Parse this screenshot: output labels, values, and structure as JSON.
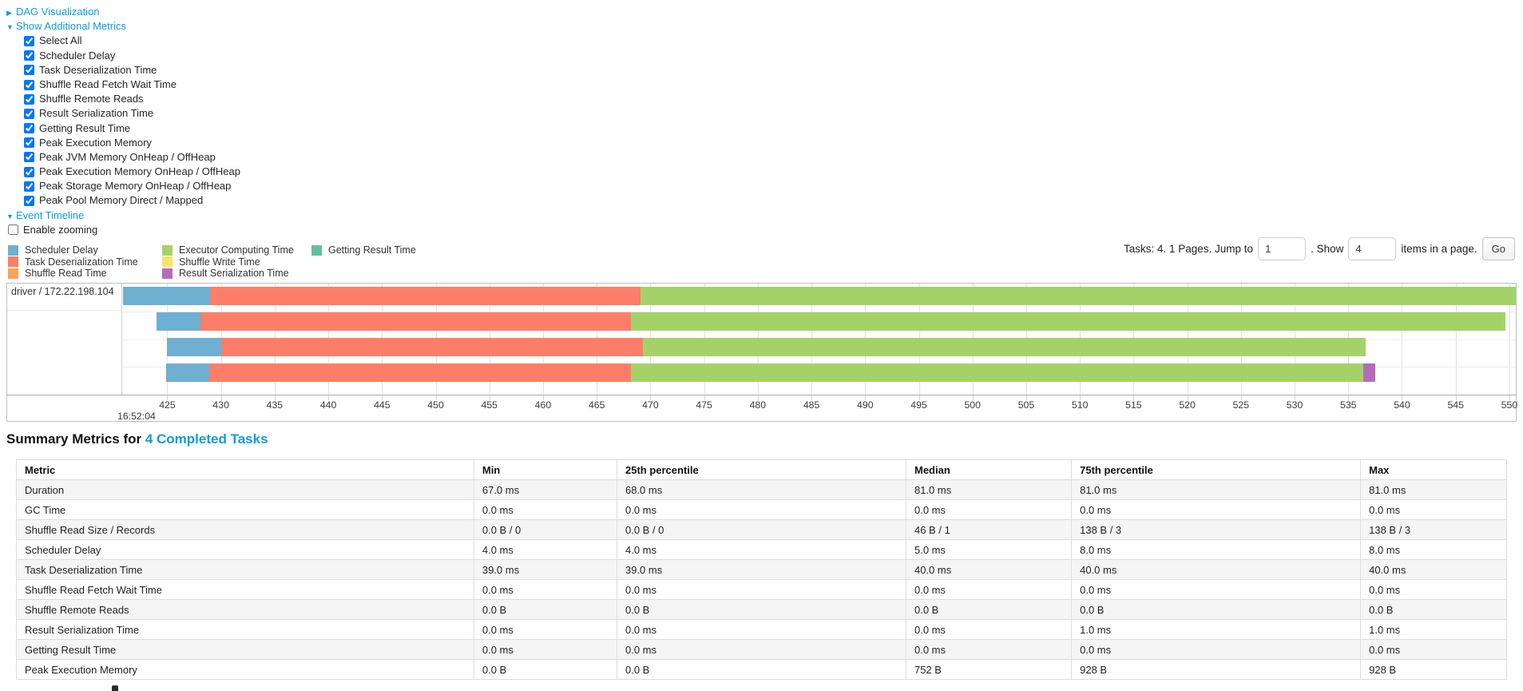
{
  "colors": {
    "link": "#0e9cdb",
    "grid": "#e2e2e2",
    "chart_border": "#c0c0c0"
  },
  "controls": {
    "dag": {
      "label": "DAG Visualization",
      "state": "collapsed"
    },
    "metrics": {
      "label": "Show Additional Metrics",
      "state": "expanded",
      "items": [
        {
          "label": "Select All",
          "checked": true
        },
        {
          "label": "Scheduler Delay",
          "checked": true
        },
        {
          "label": "Task Deserialization Time",
          "checked": true
        },
        {
          "label": "Shuffle Read Fetch Wait Time",
          "checked": true
        },
        {
          "label": "Shuffle Remote Reads",
          "checked": true
        },
        {
          "label": "Result Serialization Time",
          "checked": true
        },
        {
          "label": "Getting Result Time",
          "checked": true
        },
        {
          "label": "Peak Execution Memory",
          "checked": true
        },
        {
          "label": "Peak JVM Memory OnHeap / OffHeap",
          "checked": true
        },
        {
          "label": "Peak Execution Memory OnHeap / OffHeap",
          "checked": true
        },
        {
          "label": "Peak Storage Memory OnHeap / OffHeap",
          "checked": true
        },
        {
          "label": "Peak Pool Memory Direct / Mapped",
          "checked": true
        }
      ]
    },
    "timeline": {
      "label": "Event Timeline",
      "state": "expanded"
    },
    "enable_zooming": {
      "label": "Enable zooming",
      "checked": false
    }
  },
  "pagination": {
    "prefix": "Tasks: 4. 1 Pages. Jump to",
    "jump_value": "1",
    "mid": ". Show",
    "show_value": "4",
    "suffix": "items in a page.",
    "go_label": "Go"
  },
  "chart_data": {
    "type": "timeline",
    "title": "Event Timeline",
    "row_label": "driver / 172.22.198.104",
    "x_axis": {
      "base_time_label": "16:52:04",
      "unit": "ms within second 16:52:04",
      "min": 420.8,
      "max": 550.6,
      "tick_start": 425,
      "tick_step": 5,
      "tick_end": 550
    },
    "palette": {
      "scheduler_delay": "#6fafd2",
      "task_deserialization": "#fc7e68",
      "shuffle_read": "#f6a45c",
      "executor_computing": "#a4d269",
      "shuffle_write": "#f4e46a",
      "result_serialization": "#b46cba",
      "getting_result": "#61c0a2"
    },
    "legend_columns": [
      [
        {
          "key": "scheduler_delay",
          "label": "Scheduler Delay"
        },
        {
          "key": "task_deserialization",
          "label": "Task Deserialization Time"
        },
        {
          "key": "shuffle_read",
          "label": "Shuffle Read Time"
        }
      ],
      [
        {
          "key": "executor_computing",
          "label": "Executor Computing Time"
        },
        {
          "key": "shuffle_write",
          "label": "Shuffle Write Time"
        },
        {
          "key": "result_serialization",
          "label": "Result Serialization Time"
        }
      ],
      [
        {
          "key": "getting_result",
          "label": "Getting Result Time"
        }
      ]
    ],
    "tasks": [
      {
        "segments": [
          {
            "kind": "scheduler_delay",
            "start": 420.9,
            "end": 429.0
          },
          {
            "kind": "task_deserialization",
            "start": 429.0,
            "end": 469.1
          },
          {
            "kind": "executor_computing",
            "start": 469.1,
            "end": 550.6
          }
        ]
      },
      {
        "segments": [
          {
            "kind": "scheduler_delay",
            "start": 424.0,
            "end": 428.1
          },
          {
            "kind": "task_deserialization",
            "start": 428.1,
            "end": 468.2
          },
          {
            "kind": "executor_computing",
            "start": 468.2,
            "end": 549.6
          }
        ]
      },
      {
        "segments": [
          {
            "kind": "scheduler_delay",
            "start": 425.0,
            "end": 430.0
          },
          {
            "kind": "task_deserialization",
            "start": 430.0,
            "end": 469.3
          },
          {
            "kind": "executor_computing",
            "start": 469.3,
            "end": 536.6
          }
        ]
      },
      {
        "segments": [
          {
            "kind": "scheduler_delay",
            "start": 424.9,
            "end": 428.9
          },
          {
            "kind": "task_deserialization",
            "start": 428.9,
            "end": 468.2
          },
          {
            "kind": "executor_computing",
            "start": 468.2,
            "end": 536.4
          },
          {
            "kind": "result_serialization",
            "start": 536.4,
            "end": 537.5
          }
        ]
      }
    ]
  },
  "summary": {
    "title_prefix": "Summary Metrics for ",
    "title_link": "4 Completed Tasks",
    "table": {
      "columns": [
        "Metric",
        "Min",
        "25th percentile",
        "Median",
        "75th percentile",
        "Max"
      ],
      "column_widths_pct": [
        30.7,
        9.6,
        19.4,
        11.1,
        19.4,
        9.8
      ],
      "rows": [
        [
          "Duration",
          "67.0 ms",
          "68.0 ms",
          "81.0 ms",
          "81.0 ms",
          "81.0 ms"
        ],
        [
          "GC Time",
          "0.0 ms",
          "0.0 ms",
          "0.0 ms",
          "0.0 ms",
          "0.0 ms"
        ],
        [
          "Shuffle Read Size / Records",
          "0.0 B / 0",
          "0.0 B / 0",
          "46 B / 1",
          "138 B / 3",
          "138 B / 3"
        ],
        [
          "Scheduler Delay",
          "4.0 ms",
          "4.0 ms",
          "5.0 ms",
          "8.0 ms",
          "8.0 ms"
        ],
        [
          "Task Deserialization Time",
          "39.0 ms",
          "39.0 ms",
          "40.0 ms",
          "40.0 ms",
          "40.0 ms"
        ],
        [
          "Shuffle Read Fetch Wait Time",
          "0.0 ms",
          "0.0 ms",
          "0.0 ms",
          "0.0 ms",
          "0.0 ms"
        ],
        [
          "Shuffle Remote Reads",
          "0.0 B",
          "0.0 B",
          "0.0 B",
          "0.0 B",
          "0.0 B"
        ],
        [
          "Result Serialization Time",
          "0.0 ms",
          "0.0 ms",
          "0.0 ms",
          "1.0 ms",
          "1.0 ms"
        ],
        [
          "Getting Result Time",
          "0.0 ms",
          "0.0 ms",
          "0.0 ms",
          "0.0 ms",
          "0.0 ms"
        ],
        [
          "Peak Execution Memory",
          "0.0 B",
          "0.0 B",
          "752 B",
          "928 B",
          "928 B"
        ]
      ]
    }
  }
}
